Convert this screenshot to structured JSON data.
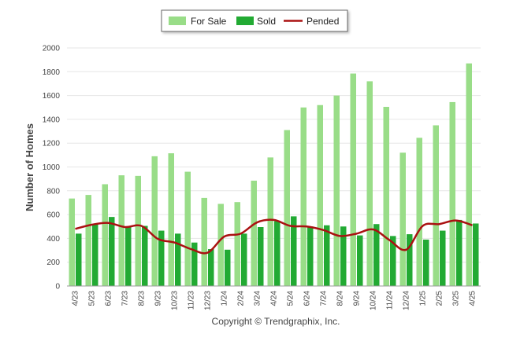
{
  "chart_data": {
    "type": "bar",
    "categories": [
      "4/23",
      "5/23",
      "6/23",
      "7/23",
      "8/23",
      "9/23",
      "10/23",
      "11/23",
      "12/23",
      "1/24",
      "2/24",
      "3/24",
      "4/24",
      "5/24",
      "6/24",
      "7/24",
      "8/24",
      "9/24",
      "10/24",
      "11/24",
      "12/24",
      "1/25",
      "2/25",
      "3/25",
      "4/25"
    ],
    "series": [
      {
        "name": "For Sale",
        "kind": "bar",
        "color": "#99dd88",
        "values": [
          735,
          765,
          855,
          930,
          925,
          1090,
          1115,
          960,
          740,
          690,
          705,
          885,
          1080,
          1310,
          1500,
          1520,
          1600,
          1785,
          1720,
          1505,
          1120,
          1245,
          1350,
          1545,
          1870
        ]
      },
      {
        "name": "Sold",
        "kind": "bar",
        "color": "#22aa33",
        "values": [
          440,
          520,
          580,
          495,
          505,
          465,
          440,
          365,
          310,
          305,
          440,
          495,
          545,
          585,
          500,
          510,
          500,
          425,
          520,
          420,
          435,
          390,
          465,
          555,
          525
        ]
      },
      {
        "name": "Pended",
        "kind": "line",
        "color": "#aa1111",
        "values": [
          480,
          515,
          530,
          495,
          505,
          395,
          365,
          310,
          280,
          415,
          440,
          535,
          555,
          505,
          500,
          470,
          420,
          440,
          475,
          385,
          305,
          505,
          520,
          550,
          510
        ]
      }
    ],
    "ylabel": "Number of Homes",
    "ylim": [
      0,
      2000
    ],
    "yticks": [
      0,
      200,
      400,
      600,
      800,
      1000,
      1200,
      1400,
      1600,
      1800,
      2000
    ],
    "grid": true,
    "legend_position": "top-center"
  },
  "footer": "Copyright © Trendgraphix, Inc."
}
